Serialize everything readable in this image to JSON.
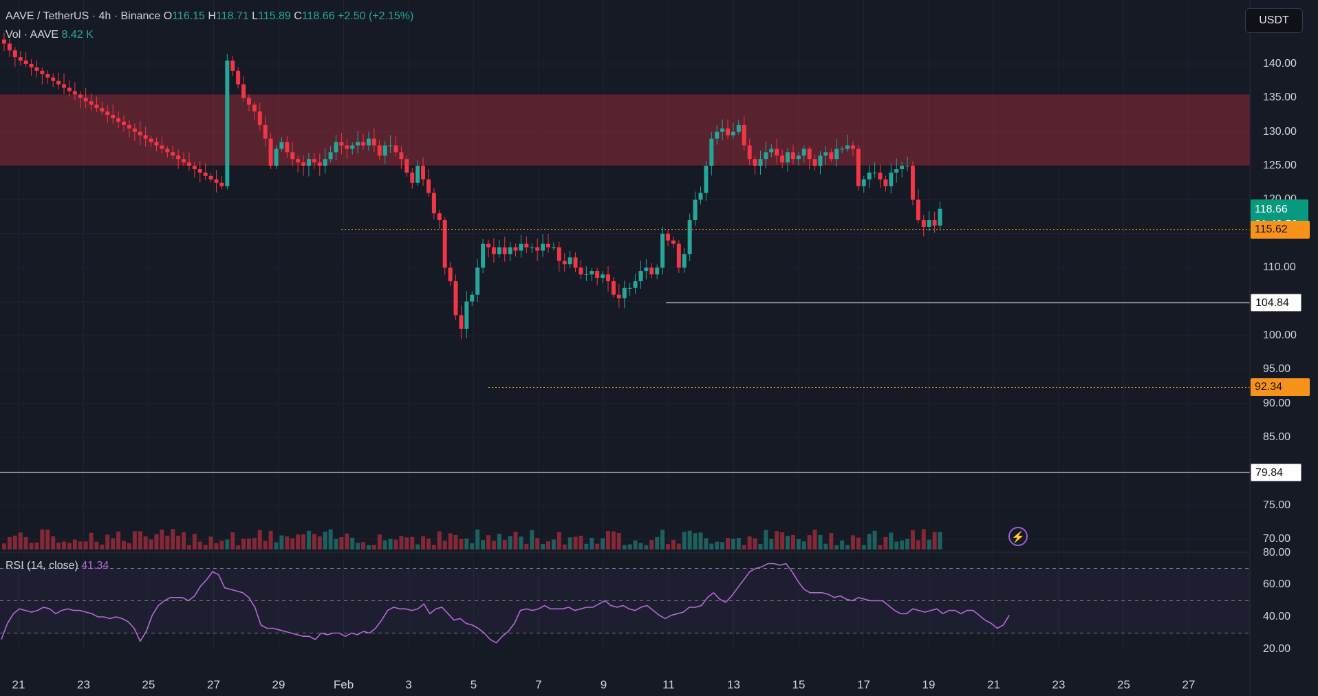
{
  "legend": {
    "symbol": "AAVE / TetherUS · 4h · Binance",
    "o_label": "O",
    "o": "116.15",
    "h_label": "H",
    "h": "118.71",
    "l_label": "L",
    "l": "115.89",
    "c_label": "C",
    "c": "118.66",
    "change": "+2.50 (+2.15%)",
    "vol_label": "Vol · AAVE",
    "vol": "8.42 K"
  },
  "rsi_legend": {
    "label": "RSI (14, close)",
    "value": "41.34"
  },
  "currency_button": "USDT",
  "price_axis_ticks": [
    "140.00",
    "135.00",
    "130.00",
    "125.00",
    "120.00",
    "110.00",
    "105.00",
    "100.00",
    "95.00",
    "90.00",
    "85.00",
    "80.00",
    "75.00",
    "70.00"
  ],
  "rsi_axis_ticks": [
    "80.00",
    "60.00",
    "40.00",
    "20.00"
  ],
  "time_axis_ticks": [
    "21",
    "23",
    "25",
    "27",
    "29",
    "Feb",
    "3",
    "5",
    "7",
    "9",
    "11",
    "13",
    "15",
    "17",
    "19",
    "21",
    "23",
    "25",
    "27"
  ],
  "price_tags": {
    "current": "118.66",
    "countdown": "01:40:50",
    "level_orange_1": "115.62",
    "level_white_1": "104.84",
    "level_orange_2": "92.34",
    "level_white_2": "79.84"
  },
  "zone": {
    "low": 125.0,
    "high": 135.5,
    "color": "#f23645"
  },
  "colors": {
    "up": "#26a69a",
    "down": "#f23645",
    "rsi": "#b668d8",
    "background": "#161a25",
    "orange": "#f7931a"
  },
  "icons": {
    "alert": "lightning-icon"
  },
  "chart_data": {
    "type": "candlestick",
    "price_scale": {
      "min": 70,
      "max": 140
    },
    "rsi_scale": {
      "min": 20,
      "max": 80,
      "bands": [
        30,
        50,
        70
      ]
    },
    "closes": [
      143,
      142,
      141,
      140.5,
      140,
      139.5,
      139,
      138.5,
      138,
      137.5,
      137,
      136.5,
      136,
      135.5,
      135,
      134.5,
      134,
      133.5,
      133,
      132.5,
      132,
      131.5,
      131,
      130.5,
      130,
      129.5,
      129,
      128.5,
      128,
      127.5,
      127,
      126.5,
      126,
      125.5,
      125,
      124.5,
      124,
      123.5,
      123,
      122.5,
      122,
      140.5,
      139,
      137,
      135,
      134,
      133,
      131,
      129,
      125,
      127.5,
      128.5,
      127,
      126,
      125.5,
      125,
      126,
      125.5,
      125,
      126,
      127,
      128.5,
      128,
      127.5,
      128,
      128.5,
      128,
      129,
      128,
      126.5,
      128,
      128,
      127,
      126,
      124,
      122.5,
      125,
      123,
      121,
      118,
      117,
      110,
      108,
      103,
      101,
      105,
      106,
      110,
      113.5,
      113,
      112,
      113,
      112,
      113,
      112.5,
      113.5,
      113,
      113,
      112.5,
      113.5,
      113,
      113,
      111,
      110.5,
      111.5,
      110,
      109,
      109,
      109.5,
      108.5,
      109,
      108,
      106,
      105.5,
      107,
      107,
      108,
      109.5,
      110,
      109,
      110,
      115,
      114,
      113.5,
      110,
      112,
      117,
      120,
      121,
      125,
      129,
      130,
      130.5,
      129.5,
      130,
      131,
      128,
      126,
      125,
      126,
      127,
      127.5,
      126.5,
      125.5,
      127,
      126,
      126.5,
      127.5,
      126,
      125,
      126.5,
      127,
      126,
      127.5,
      127.5,
      128,
      127.5,
      122,
      123,
      124,
      124,
      123,
      122,
      124,
      124.5,
      125,
      125,
      120,
      117,
      116,
      117,
      116.2,
      118.66
    ],
    "volume_scale_max": 35,
    "rsi_values": [
      26,
      36,
      42,
      45,
      44,
      43,
      44,
      46,
      45,
      42,
      44,
      45,
      44,
      44,
      43,
      42,
      40,
      40,
      39,
      40,
      39,
      37,
      33,
      25,
      31,
      41,
      47,
      50,
      52,
      52,
      52,
      50,
      53,
      59,
      63,
      68,
      66,
      58,
      57,
      56,
      55,
      52,
      46,
      35,
      33,
      33,
      32,
      31,
      30,
      29,
      28,
      28,
      26,
      30,
      29,
      30,
      30,
      28,
      30,
      29,
      31,
      30,
      33,
      38,
      44,
      46,
      45,
      45,
      44,
      45,
      48,
      42,
      45,
      46,
      42,
      38,
      39,
      36,
      35,
      33,
      30,
      26,
      24,
      28,
      31,
      36,
      44,
      45,
      44,
      45,
      47,
      45,
      45,
      45,
      46,
      44,
      45,
      46,
      46,
      48,
      50,
      47,
      46,
      47,
      45,
      44,
      46,
      47,
      44,
      41,
      39,
      41,
      42,
      43,
      46,
      46,
      47,
      52,
      55,
      51,
      49,
      53,
      58,
      63,
      68,
      70,
      71,
      73,
      73,
      72,
      73,
      68,
      62,
      57,
      55,
      55,
      55,
      54,
      52,
      53,
      51,
      50,
      52,
      51,
      50,
      50,
      50,
      47,
      44,
      42,
      42,
      45,
      44,
      43,
      44,
      45,
      42,
      44,
      44,
      42,
      44,
      44,
      41,
      38,
      36,
      33,
      35,
      41
    ]
  }
}
